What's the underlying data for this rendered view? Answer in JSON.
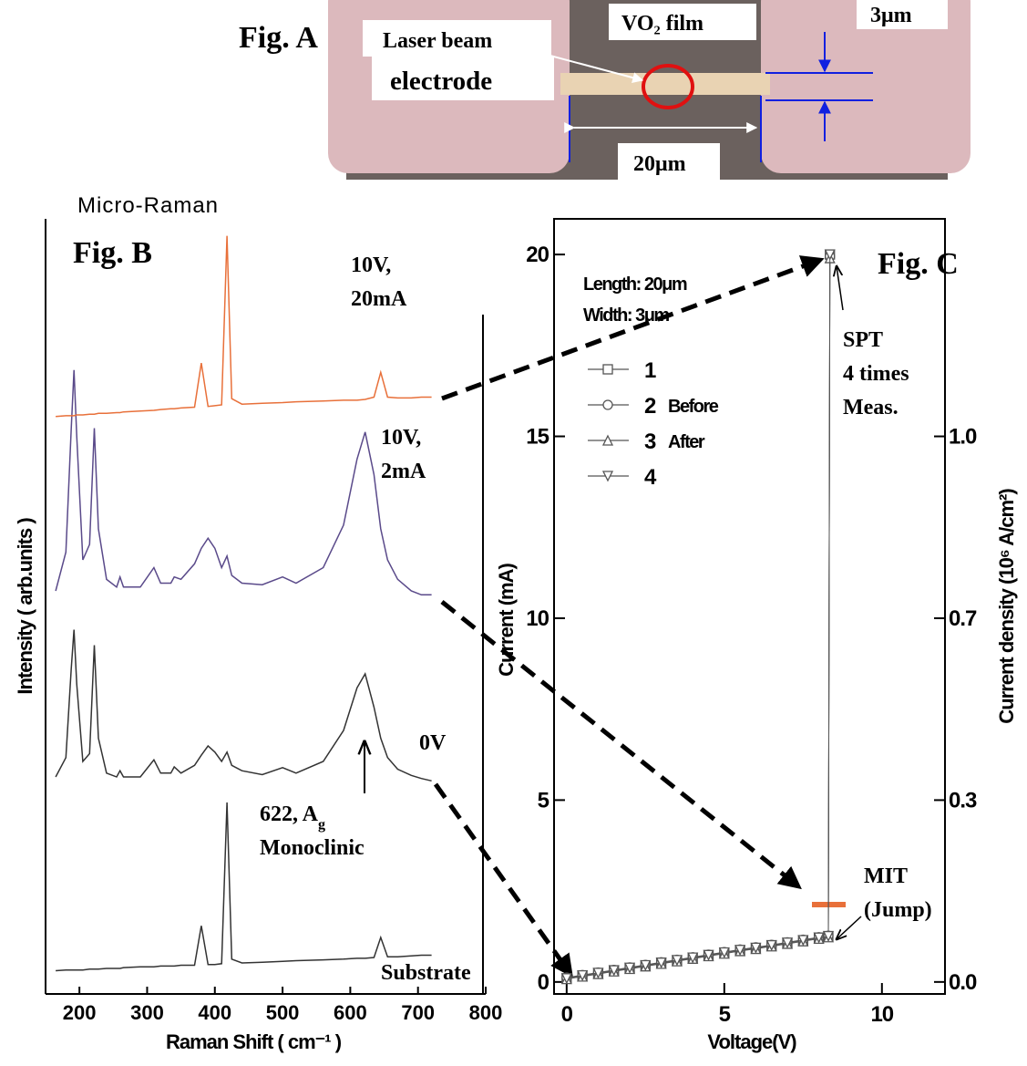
{
  "fig_a": {
    "label": "Fig. A",
    "laser_beam": "Laser beam",
    "electrode": "electrode",
    "film": "VO₂ film",
    "width": "3μm",
    "length": "20μm"
  },
  "chart_data": [
    {
      "type": "line",
      "title": "Micro-Raman",
      "xlabel": "Raman Shift ( cm⁻¹ )",
      "ylabel": "Intensity ( arb.units )",
      "xlim": [
        150,
        800
      ],
      "xticks": [
        200,
        300,
        400,
        500,
        600,
        700,
        800
      ],
      "ylim": [
        0,
        100
      ],
      "x": [
        165,
        180,
        188,
        192,
        196,
        205,
        215,
        222,
        228,
        240,
        255,
        260,
        265,
        290,
        310,
        320,
        335,
        340,
        350,
        370,
        380,
        390,
        400,
        410,
        418,
        425,
        440,
        470,
        500,
        520,
        560,
        590,
        610,
        622,
        635,
        645,
        655,
        670,
        690,
        705,
        720
      ],
      "series": [
        {
          "color": "#333333",
          "values": [
            3.0,
            3.1,
            3.1,
            3.1,
            3.1,
            3.1,
            3.2,
            3.2,
            3.2,
            3.3,
            3.3,
            3.3,
            3.4,
            3.5,
            3.5,
            3.6,
            3.6,
            3.6,
            3.7,
            3.7,
            8.8,
            3.8,
            3.8,
            3.9,
            24.7,
            4.5,
            4.0,
            4.1,
            4.2,
            4.3,
            4.4,
            4.5,
            4.6,
            4.6,
            4.7,
            7.3,
            4.8,
            4.8,
            4.9,
            5.0,
            5.0
          ]
        },
        {
          "color": "#333333",
          "values": [
            28.0,
            30.5,
            42,
            47,
            40,
            30,
            31,
            45,
            33,
            28.5,
            28,
            28.8,
            28,
            28,
            30.2,
            28.5,
            28.5,
            29.3,
            28.5,
            29.5,
            30.8,
            32,
            31.2,
            30,
            31.2,
            29.5,
            28.8,
            28.3,
            29.2,
            28.5,
            30,
            34,
            39.5,
            41.3,
            37,
            33,
            30.5,
            29,
            28.2,
            27.8,
            27.5
          ]
        },
        {
          "color": "#5a4a8a",
          "values": [
            52,
            57,
            73,
            80.5,
            72,
            56,
            58,
            73,
            60,
            53.5,
            52.5,
            53.8,
            52.5,
            52.5,
            55,
            53,
            53,
            53.8,
            53.5,
            55.5,
            57.5,
            58.8,
            57.5,
            55,
            56.5,
            54,
            53,
            52.8,
            53.8,
            53,
            55,
            60.5,
            69,
            72.5,
            67,
            60,
            56,
            53.5,
            52,
            51.5,
            51.5
          ]
        },
        {
          "color": "#e8703a",
          "values": [
            74.5,
            74.6,
            74.6,
            74.6,
            74.7,
            74.7,
            74.8,
            74.8,
            74.9,
            74.9,
            75.0,
            75.0,
            75.1,
            75.2,
            75.3,
            75.4,
            75.5,
            75.5,
            75.6,
            75.7,
            81.4,
            75.8,
            75.9,
            76.0,
            97.8,
            76.8,
            76.1,
            76.2,
            76.3,
            76.4,
            76.5,
            76.6,
            76.6,
            76.7,
            77.0,
            80.2,
            77.0,
            76.9,
            76.9,
            77.0,
            77.0
          ]
        }
      ],
      "annotations": [
        "Fig. B",
        "10V,",
        "20mA",
        "10V,",
        "2mA",
        "0V",
        {
          "text": "622, A",
          "sub": "g"
        },
        "Monoclinic",
        "Substrate"
      ]
    },
    {
      "type": "line",
      "xlabel": "Voltage(V)",
      "ylabel": "Current (mA)",
      "y2label": "Current density (10⁶ A/cm²)",
      "xlim": [
        -0.4,
        12
      ],
      "xticks": [
        0,
        5,
        10
      ],
      "ylim": [
        -0.33,
        20.98
      ],
      "yticks": [
        0,
        5,
        10,
        15,
        20
      ],
      "y2lim": [
        -0.022,
        1.3987
      ],
      "y2ticks": [
        {
          "value": 0,
          "label": "0.0"
        },
        {
          "value": 0.3333,
          "label": "0.3"
        },
        {
          "value": 0.6667,
          "label": "0.7"
        },
        {
          "value": 1,
          "label": "1.0"
        }
      ],
      "x": [
        0,
        0.5,
        1,
        1.5,
        2,
        2.5,
        3,
        3.5,
        4,
        4.5,
        5,
        5.5,
        6,
        6.5,
        7,
        7.5,
        8,
        8.3,
        8.35
      ],
      "series": [
        {
          "name": "1",
          "marker": "square",
          "color": "#555555",
          "values": [
            0.1,
            0.17,
            0.24,
            0.31,
            0.38,
            0.45,
            0.52,
            0.59,
            0.66,
            0.73,
            0.8,
            0.87,
            0.93,
            1.0,
            1.07,
            1.14,
            1.21,
            1.25,
            20.0
          ]
        },
        {
          "name": "2",
          "marker": "circle",
          "color": "#555555",
          "values": [
            0.12,
            0.19,
            0.26,
            0.33,
            0.4,
            0.47,
            0.54,
            0.61,
            0.68,
            0.75,
            0.82,
            0.89,
            0.95,
            1.02,
            1.09,
            1.16,
            1.23,
            1.27,
            19.95
          ]
        },
        {
          "name": "3",
          "marker": "triangle-up",
          "color": "#555555",
          "values": [
            0.08,
            0.15,
            0.22,
            0.29,
            0.36,
            0.43,
            0.5,
            0.57,
            0.64,
            0.71,
            0.78,
            0.85,
            0.91,
            0.98,
            1.05,
            1.12,
            1.19,
            1.23,
            19.9
          ]
        },
        {
          "name": "4",
          "marker": "triangle-down",
          "color": "#555555",
          "values": [
            0.1,
            0.18,
            0.25,
            0.32,
            0.39,
            0.46,
            0.53,
            0.6,
            0.67,
            0.74,
            0.81,
            0.88,
            0.94,
            1.01,
            1.08,
            1.15,
            1.22,
            1.26,
            20.0
          ]
        }
      ],
      "annotations": [
        "Fig. C",
        "Length: 20μm",
        "Width: 3μm",
        "Before",
        "After",
        "SPT",
        "4 times",
        "Meas.",
        "MIT",
        "(Jump)"
      ]
    }
  ]
}
